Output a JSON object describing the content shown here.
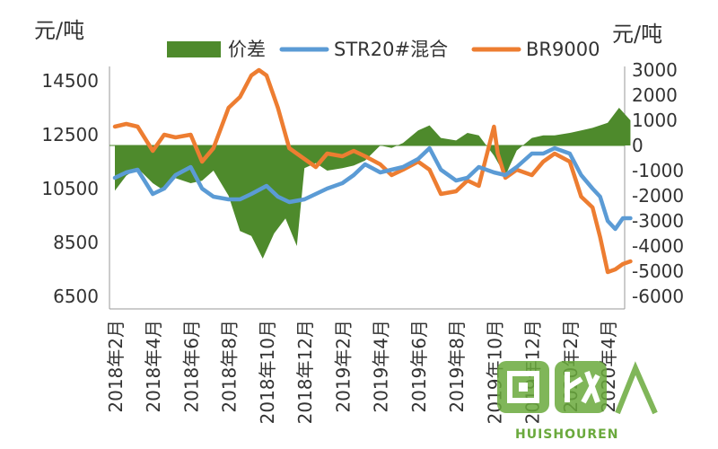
{
  "chart_data": {
    "type": "area+line",
    "left_axis_unit": "元/吨",
    "right_axis_unit": "元/吨",
    "left_ticks": [
      14500,
      12500,
      10500,
      8500,
      6500
    ],
    "right_ticks": [
      3000,
      2000,
      1000,
      0,
      -1000,
      -2000,
      -3000,
      -4000,
      -5000,
      -6000
    ],
    "ylim_left": [
      6500,
      14500
    ],
    "ylim_right": [
      -6000,
      3000
    ],
    "x_labels": [
      "2018年2月",
      "2018年4月",
      "2018年6月",
      "2018年8月",
      "2018年10月",
      "2018年12月",
      "2019年2月",
      "2019年4月",
      "2019年6月",
      "2019年8月",
      "2019年10月",
      "2019年12月",
      "2020年2月",
      "2020年4月"
    ],
    "legend_position": "top",
    "colors": {
      "spread": "#4e8a2c",
      "str20": "#5b9bd5",
      "br9000": "#ed7d31"
    },
    "series": [
      {
        "name": "价差",
        "axis": "right",
        "style": "area",
        "x": [
          0,
          0.3,
          0.6,
          1,
          1.3,
          1.6,
          2,
          2.3,
          2.6,
          3,
          3.3,
          3.6,
          3.9,
          4.2,
          4.5,
          4.8,
          5,
          5.3,
          5.6,
          6,
          6.3,
          6.6,
          7,
          7.3,
          7.6,
          8,
          8.3,
          8.6,
          9,
          9.3,
          9.6,
          10,
          10.3,
          10.6,
          11,
          11.3,
          11.6,
          12,
          12.3,
          12.6,
          13,
          13.3,
          13.6
        ],
        "values": [
          -1800,
          -1200,
          -900,
          -1500,
          -1800,
          -1300,
          -1500,
          -1400,
          -1000,
          -2000,
          -3400,
          -3600,
          -4500,
          -3500,
          -2900,
          -4000,
          -900,
          -700,
          -1000,
          -900,
          -800,
          -600,
          0,
          -100,
          100,
          600,
          800,
          300,
          200,
          500,
          400,
          -400,
          -1200,
          -200,
          300,
          400,
          400,
          500,
          600,
          700,
          900,
          1500,
          1000
        ]
      },
      {
        "name": "STR20#混合",
        "axis": "left",
        "style": "line",
        "x": [
          0,
          0.3,
          0.6,
          1,
          1.3,
          1.6,
          2,
          2.3,
          2.6,
          3,
          3.3,
          3.6,
          4,
          4.3,
          4.6,
          5,
          5.3,
          5.6,
          6,
          6.3,
          6.6,
          7,
          7.3,
          7.6,
          8,
          8.3,
          8.6,
          9,
          9.3,
          9.6,
          10,
          10.3,
          10.6,
          11,
          11.3,
          11.6,
          12,
          12.3,
          12.6,
          12.8,
          13,
          13.2,
          13.4,
          13.6
        ],
        "values": [
          10900,
          11100,
          11200,
          10300,
          10500,
          11000,
          11300,
          10500,
          10200,
          10100,
          10100,
          10300,
          10600,
          10200,
          10000,
          10100,
          10300,
          10500,
          10700,
          11000,
          11400,
          11100,
          11200,
          11300,
          11600,
          12000,
          11200,
          10800,
          10900,
          11300,
          11100,
          11000,
          11300,
          11800,
          11800,
          12000,
          11800,
          11000,
          10500,
          10200,
          9300,
          9000,
          9400,
          9400
        ]
      },
      {
        "name": "BR9000",
        "axis": "left",
        "style": "line",
        "x": [
          0,
          0.3,
          0.6,
          1,
          1.3,
          1.6,
          2,
          2.3,
          2.6,
          3,
          3.3,
          3.6,
          3.8,
          4,
          4.3,
          4.6,
          5,
          5.3,
          5.6,
          6,
          6.3,
          6.6,
          7,
          7.3,
          7.6,
          8,
          8.3,
          8.6,
          9,
          9.3,
          9.6,
          10,
          10.1,
          10.3,
          10.6,
          11,
          11.3,
          11.6,
          12,
          12.3,
          12.6,
          12.8,
          13,
          13.2,
          13.4,
          13.6
        ],
        "values": [
          12800,
          12900,
          12800,
          11900,
          12500,
          12400,
          12500,
          11500,
          12000,
          13500,
          13900,
          14700,
          14900,
          14700,
          13500,
          12000,
          11600,
          11300,
          11800,
          11700,
          11900,
          11700,
          11400,
          11000,
          11200,
          11500,
          11200,
          10300,
          10400,
          10800,
          10600,
          12800,
          11800,
          10900,
          11200,
          11000,
          11500,
          11800,
          11500,
          10200,
          9800,
          8700,
          7400,
          7500,
          7700,
          7800
        ]
      }
    ]
  },
  "watermark": {
    "text": "HUISHOUREN",
    "logo_text": "回收"
  }
}
